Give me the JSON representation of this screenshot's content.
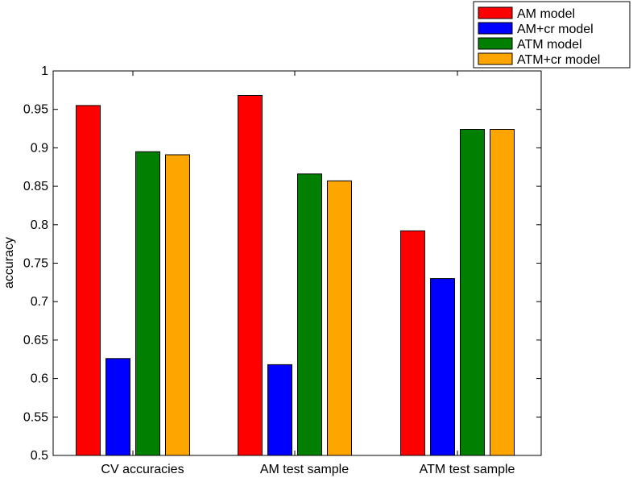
{
  "chart_data": {
    "type": "bar",
    "title": "",
    "xlabel": "",
    "ylabel": "accuracy",
    "ylim": [
      0.5,
      1.0
    ],
    "yticks": [
      "0.5",
      "0.55",
      "0.6",
      "0.65",
      "0.7",
      "0.75",
      "0.8",
      "0.85",
      "0.9",
      "0.95",
      "1"
    ],
    "grid": false,
    "legend_position": "top-right",
    "categories": [
      "CV accuracies",
      "AM test sample",
      "ATM test sample"
    ],
    "series": [
      {
        "name": "AM model",
        "color": "#ff0000",
        "values": [
          0.955,
          0.968,
          0.792
        ]
      },
      {
        "name": "AM+cr model",
        "color": "#0000ff",
        "values": [
          0.626,
          0.618,
          0.73
        ]
      },
      {
        "name": "ATM model",
        "color": "#007f00",
        "values": [
          0.895,
          0.866,
          0.924
        ]
      },
      {
        "name": "ATM+cr model",
        "color": "#ffa500",
        "values": [
          0.891,
          0.857,
          0.924
        ]
      }
    ]
  }
}
